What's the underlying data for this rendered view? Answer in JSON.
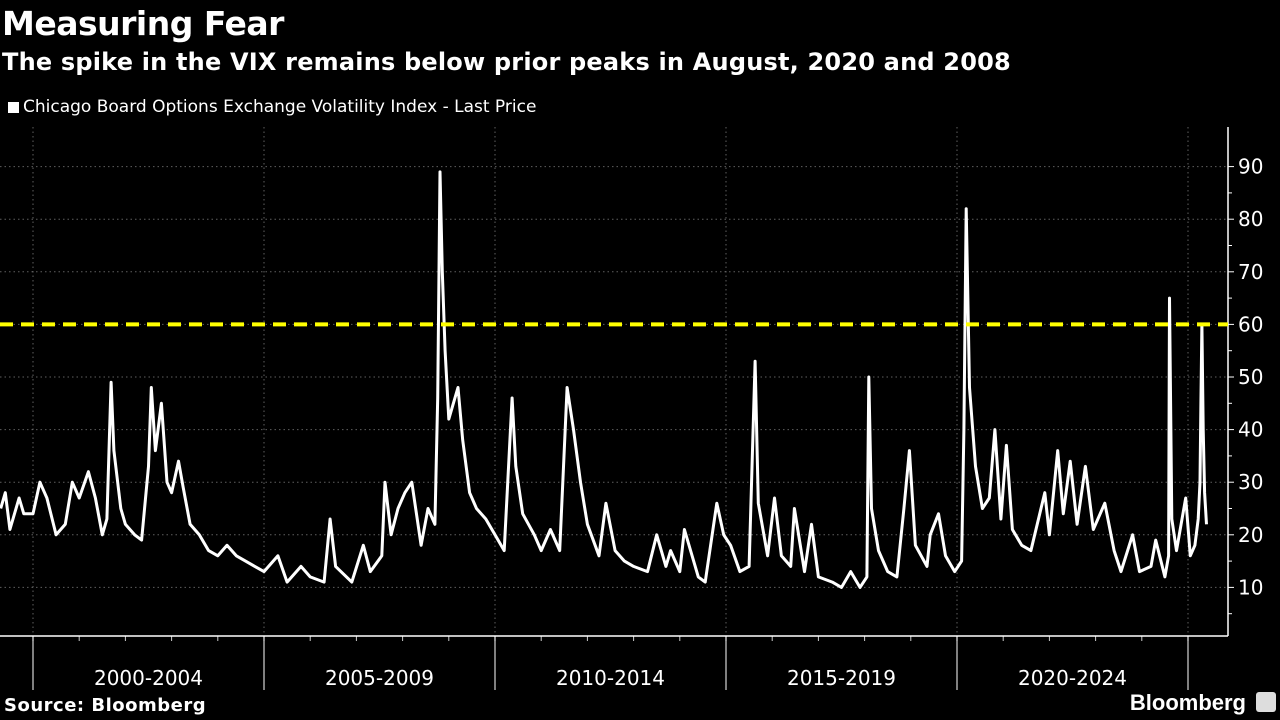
{
  "header": {
    "title": "Measuring Fear",
    "subtitle": "The spike in the VIX remains below prior peaks in August, 2020 and 2008"
  },
  "footer": {
    "source": "Source: Bloomberg",
    "brand": "Bloomberg"
  },
  "colors": {
    "series": "#ffffff",
    "threshold": "#ffff00",
    "grid": "#888888",
    "background": "#000000"
  },
  "chart_data": {
    "type": "line",
    "title": "Measuring Fear",
    "subtitle": "The spike in the VIX remains below prior peaks in August, 2020 and 2008",
    "legend": [
      "Chicago Board Options Exchange Volatility Index - Last Price"
    ],
    "legend_placement": "top-left",
    "xlabel": "",
    "ylabel": "",
    "xlim": [
      1999.3,
      2025.55
    ],
    "ylim": [
      0,
      97
    ],
    "yticks": [
      10,
      20,
      30,
      40,
      50,
      60,
      70,
      80,
      90
    ],
    "xtick_labels": [
      {
        "label": "2000-2004",
        "from": 2000,
        "to": 2005
      },
      {
        "label": "2005-2009",
        "from": 2005,
        "to": 2010
      },
      {
        "label": "2010-2014",
        "from": 2010,
        "to": 2015
      },
      {
        "label": "2015-2019",
        "from": 2015,
        "to": 2020
      },
      {
        "label": "2020-2024",
        "from": 2020,
        "to": 2025
      }
    ],
    "grid": true,
    "threshold": {
      "value": 60,
      "style": "dashed"
    },
    "series": [
      {
        "name": "Chicago Board Options Exchange Volatility Index - Last Price",
        "points": [
          [
            1999.3,
            25
          ],
          [
            1999.4,
            28
          ],
          [
            1999.5,
            21
          ],
          [
            1999.7,
            27
          ],
          [
            1999.8,
            24
          ],
          [
            2000.0,
            24
          ],
          [
            2000.15,
            30
          ],
          [
            2000.3,
            27
          ],
          [
            2000.5,
            20
          ],
          [
            2000.7,
            22
          ],
          [
            2000.85,
            30
          ],
          [
            2001.0,
            27
          ],
          [
            2001.2,
            32
          ],
          [
            2001.35,
            27
          ],
          [
            2001.5,
            20
          ],
          [
            2001.6,
            23
          ],
          [
            2001.69,
            49
          ],
          [
            2001.75,
            36
          ],
          [
            2001.9,
            25
          ],
          [
            2002.0,
            22
          ],
          [
            2002.2,
            20
          ],
          [
            2002.35,
            19
          ],
          [
            2002.5,
            33
          ],
          [
            2002.56,
            48
          ],
          [
            2002.65,
            36
          ],
          [
            2002.78,
            45
          ],
          [
            2002.9,
            30
          ],
          [
            2003.0,
            28
          ],
          [
            2003.15,
            34
          ],
          [
            2003.25,
            29
          ],
          [
            2003.4,
            22
          ],
          [
            2003.6,
            20
          ],
          [
            2003.8,
            17
          ],
          [
            2004.0,
            16
          ],
          [
            2004.2,
            18
          ],
          [
            2004.4,
            16
          ],
          [
            2004.6,
            15
          ],
          [
            2004.8,
            14
          ],
          [
            2005.0,
            13
          ],
          [
            2005.3,
            16
          ],
          [
            2005.5,
            11
          ],
          [
            2005.8,
            14
          ],
          [
            2006.0,
            12
          ],
          [
            2006.3,
            11
          ],
          [
            2006.43,
            23
          ],
          [
            2006.55,
            14
          ],
          [
            2006.9,
            11
          ],
          [
            2007.15,
            18
          ],
          [
            2007.3,
            13
          ],
          [
            2007.55,
            16
          ],
          [
            2007.62,
            30
          ],
          [
            2007.75,
            20
          ],
          [
            2007.9,
            25
          ],
          [
            2008.05,
            28
          ],
          [
            2008.2,
            30
          ],
          [
            2008.4,
            18
          ],
          [
            2008.55,
            25
          ],
          [
            2008.7,
            22
          ],
          [
            2008.76,
            46
          ],
          [
            2008.81,
            89
          ],
          [
            2008.86,
            70
          ],
          [
            2008.92,
            55
          ],
          [
            2009.0,
            42
          ],
          [
            2009.2,
            48
          ],
          [
            2009.3,
            38
          ],
          [
            2009.45,
            28
          ],
          [
            2009.6,
            25
          ],
          [
            2009.8,
            23
          ],
          [
            2010.0,
            20
          ],
          [
            2010.2,
            17
          ],
          [
            2010.37,
            46
          ],
          [
            2010.45,
            33
          ],
          [
            2010.6,
            24
          ],
          [
            2010.85,
            20
          ],
          [
            2011.0,
            17
          ],
          [
            2011.2,
            21
          ],
          [
            2011.4,
            17
          ],
          [
            2011.56,
            48
          ],
          [
            2011.7,
            40
          ],
          [
            2011.85,
            30
          ],
          [
            2012.0,
            22
          ],
          [
            2012.25,
            16
          ],
          [
            2012.4,
            26
          ],
          [
            2012.6,
            17
          ],
          [
            2012.8,
            15
          ],
          [
            2013.0,
            14
          ],
          [
            2013.3,
            13
          ],
          [
            2013.5,
            20
          ],
          [
            2013.7,
            14
          ],
          [
            2013.8,
            17
          ],
          [
            2014.0,
            13
          ],
          [
            2014.1,
            21
          ],
          [
            2014.4,
            12
          ],
          [
            2014.55,
            11
          ],
          [
            2014.8,
            26
          ],
          [
            2014.95,
            20
          ],
          [
            2015.1,
            18
          ],
          [
            2015.3,
            13
          ],
          [
            2015.5,
            14
          ],
          [
            2015.63,
            53
          ],
          [
            2015.7,
            26
          ],
          [
            2015.9,
            16
          ],
          [
            2016.05,
            27
          ],
          [
            2016.2,
            16
          ],
          [
            2016.4,
            14
          ],
          [
            2016.48,
            25
          ],
          [
            2016.7,
            13
          ],
          [
            2016.85,
            22
          ],
          [
            2017.0,
            12
          ],
          [
            2017.3,
            11
          ],
          [
            2017.5,
            10
          ],
          [
            2017.7,
            13
          ],
          [
            2017.9,
            10
          ],
          [
            2018.05,
            12
          ],
          [
            2018.09,
            50
          ],
          [
            2018.15,
            25
          ],
          [
            2018.3,
            17
          ],
          [
            2018.5,
            13
          ],
          [
            2018.7,
            12
          ],
          [
            2018.85,
            25
          ],
          [
            2018.97,
            36
          ],
          [
            2019.1,
            18
          ],
          [
            2019.35,
            14
          ],
          [
            2019.42,
            20
          ],
          [
            2019.6,
            24
          ],
          [
            2019.75,
            16
          ],
          [
            2019.95,
            13
          ],
          [
            2020.1,
            15
          ],
          [
            2020.15,
            40
          ],
          [
            2020.2,
            82
          ],
          [
            2020.27,
            48
          ],
          [
            2020.4,
            33
          ],
          [
            2020.55,
            25
          ],
          [
            2020.7,
            27
          ],
          [
            2020.82,
            40
          ],
          [
            2020.95,
            23
          ],
          [
            2021.07,
            37
          ],
          [
            2021.2,
            21
          ],
          [
            2021.4,
            18
          ],
          [
            2021.6,
            17
          ],
          [
            2021.9,
            28
          ],
          [
            2022.0,
            20
          ],
          [
            2022.18,
            36
          ],
          [
            2022.3,
            24
          ],
          [
            2022.45,
            34
          ],
          [
            2022.6,
            22
          ],
          [
            2022.78,
            33
          ],
          [
            2022.95,
            21
          ],
          [
            2023.2,
            26
          ],
          [
            2023.4,
            17
          ],
          [
            2023.55,
            13
          ],
          [
            2023.8,
            20
          ],
          [
            2023.95,
            13
          ],
          [
            2024.2,
            14
          ],
          [
            2024.3,
            19
          ],
          [
            2024.5,
            12
          ],
          [
            2024.58,
            16
          ],
          [
            2024.6,
            65
          ],
          [
            2024.65,
            23
          ],
          [
            2024.75,
            17
          ],
          [
            2024.85,
            22
          ],
          [
            2024.95,
            27
          ],
          [
            2025.05,
            16
          ],
          [
            2025.15,
            18
          ],
          [
            2025.22,
            23
          ],
          [
            2025.26,
            30
          ],
          [
            2025.28,
            45
          ],
          [
            2025.3,
            60
          ],
          [
            2025.33,
            40
          ],
          [
            2025.36,
            28
          ],
          [
            2025.4,
            22
          ]
        ]
      }
    ]
  }
}
